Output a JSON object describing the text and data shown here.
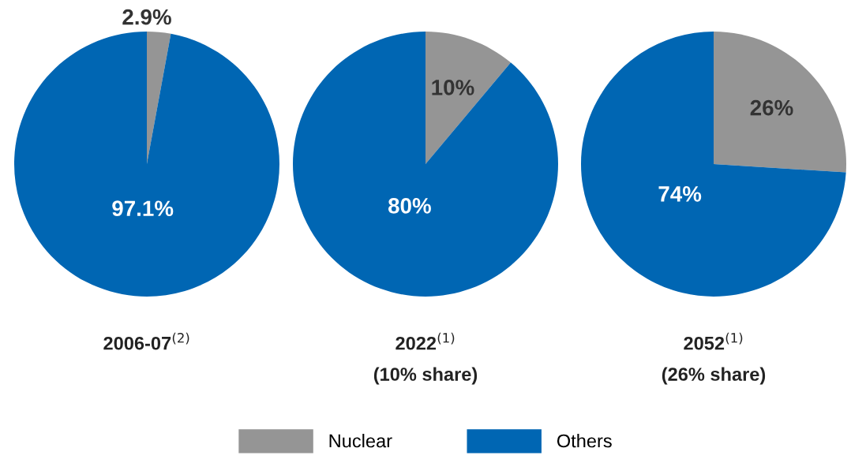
{
  "chart_data": [
    {
      "type": "pie",
      "xlabel": "2006-07$^{(2)}$",
      "categories": [
        "Nuclear",
        "Others"
      ],
      "values": [
        2.9,
        97.1
      ],
      "value_labels": [
        "2.9%",
        "97.1%"
      ],
      "colors": [
        "#959595",
        "#0066b3"
      ],
      "legend": "bottom"
    },
    {
      "type": "pie",
      "xlabel": "2022$^{(1)}$\n(10% share)",
      "values": [
        10,
        80
      ],
      "value_labels": [
        "10%",
        "80%"
      ],
      "colors": [
        "#959595",
        "#0066b3"
      ]
    },
    {
      "type": "pie",
      "xlabel": "2052$^{(1)}$\n(26% share)",
      "values": [
        26,
        74
      ],
      "value_labels": [
        "26%",
        "74%"
      ],
      "colors": [
        "#959595",
        "#0066b3"
      ]
    }
  ]
}
